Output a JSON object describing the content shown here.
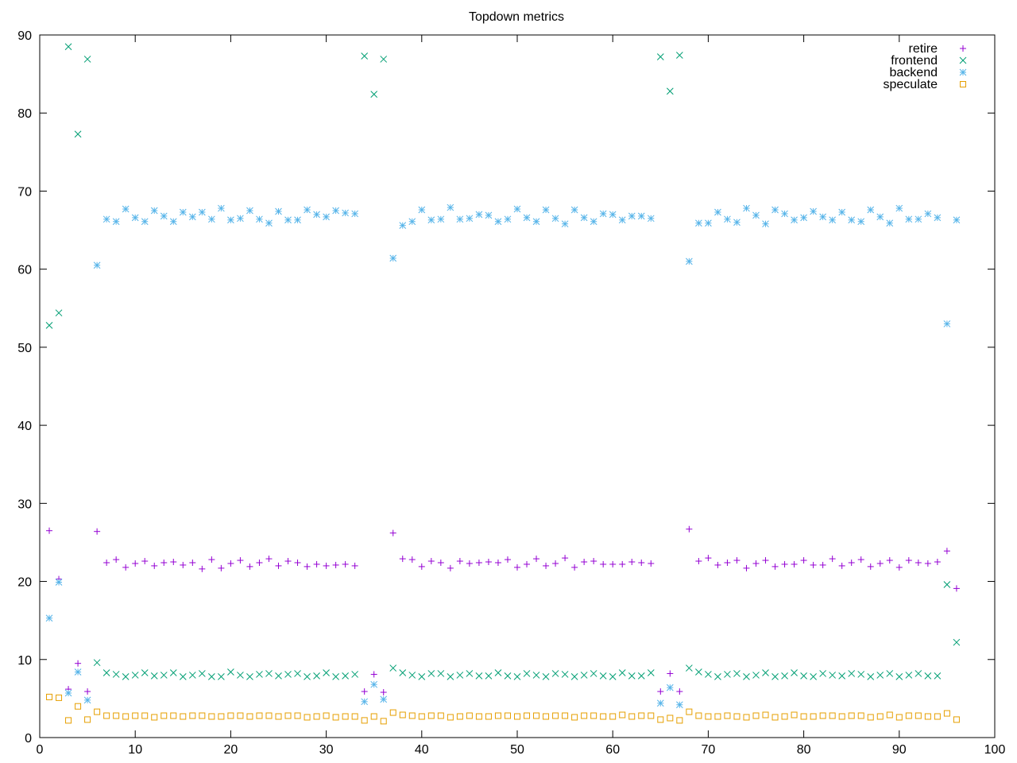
{
  "chart_data": {
    "type": "scatter",
    "title": "Topdown metrics",
    "xlabel": "",
    "ylabel": "",
    "xlim": [
      0,
      100
    ],
    "ylim": [
      0,
      90
    ],
    "xticks": [
      0,
      10,
      20,
      30,
      40,
      50,
      60,
      70,
      80,
      90,
      100
    ],
    "yticks": [
      0,
      10,
      20,
      30,
      40,
      50,
      60,
      70,
      80,
      90
    ],
    "grid": false,
    "legend_position": "top-right",
    "x": [
      1,
      2,
      3,
      4,
      5,
      6,
      7,
      8,
      9,
      10,
      11,
      12,
      13,
      14,
      15,
      16,
      17,
      18,
      19,
      20,
      21,
      22,
      23,
      24,
      25,
      26,
      27,
      28,
      29,
      30,
      31,
      32,
      33,
      34,
      35,
      36,
      37,
      38,
      39,
      40,
      41,
      42,
      43,
      44,
      45,
      46,
      47,
      48,
      49,
      50,
      51,
      52,
      53,
      54,
      55,
      56,
      57,
      58,
      59,
      60,
      61,
      62,
      63,
      64,
      65,
      66,
      67,
      68,
      69,
      70,
      71,
      72,
      73,
      74,
      75,
      76,
      77,
      78,
      79,
      80,
      81,
      82,
      83,
      84,
      85,
      86,
      87,
      88,
      89,
      90,
      91,
      92,
      93,
      94,
      95,
      96
    ],
    "series": [
      {
        "name": "retire",
        "color": "#9400d3",
        "marker": "plus",
        "values": [
          26.5,
          20.3,
          6.2,
          9.5,
          5.9,
          26.4,
          22.4,
          22.8,
          21.8,
          22.3,
          22.6,
          22.0,
          22.4,
          22.5,
          22.1,
          22.4,
          21.6,
          22.8,
          21.7,
          22.3,
          22.7,
          21.9,
          22.4,
          22.9,
          22.0,
          22.6,
          22.4,
          21.9,
          22.2,
          22.0,
          22.1,
          22.2,
          22.0,
          5.9,
          8.1,
          5.8,
          26.2,
          22.9,
          22.8,
          21.9,
          22.6,
          22.4,
          21.7,
          22.6,
          22.3,
          22.4,
          22.5,
          22.4,
          22.8,
          21.8,
          22.2,
          22.9,
          22.0,
          22.3,
          23.0,
          21.8,
          22.5,
          22.6,
          22.2,
          22.2,
          22.2,
          22.5,
          22.4,
          22.3,
          5.9,
          8.2,
          5.9,
          26.7,
          22.6,
          23.0,
          22.1,
          22.4,
          22.7,
          21.7,
          22.3,
          22.7,
          21.9,
          22.2,
          22.2,
          22.7,
          22.1,
          22.1,
          22.9,
          22.0,
          22.4,
          22.8,
          21.9,
          22.3,
          22.7,
          21.8,
          22.7,
          22.4,
          22.3,
          22.5,
          23.9,
          19.1
        ]
      },
      {
        "name": "frontend",
        "color": "#009e73",
        "marker": "cross",
        "values": [
          52.8,
          54.4,
          88.5,
          77.3,
          86.9,
          9.6,
          8.3,
          8.1,
          7.8,
          8.0,
          8.3,
          7.9,
          8.0,
          8.3,
          7.8,
          8.0,
          8.2,
          7.8,
          7.8,
          8.4,
          8.0,
          7.8,
          8.1,
          8.2,
          7.9,
          8.1,
          8.2,
          7.8,
          7.9,
          8.3,
          7.8,
          7.9,
          8.1,
          87.3,
          82.4,
          86.9,
          8.9,
          8.3,
          8.0,
          7.8,
          8.2,
          8.2,
          7.8,
          8.0,
          8.2,
          7.9,
          7.9,
          8.3,
          7.9,
          7.8,
          8.2,
          8.0,
          7.8,
          8.2,
          8.1,
          7.8,
          8.0,
          8.2,
          7.9,
          7.8,
          8.3,
          7.9,
          7.9,
          8.3,
          87.2,
          82.8,
          87.4,
          8.9,
          8.4,
          8.1,
          7.8,
          8.1,
          8.2,
          7.8,
          8.0,
          8.3,
          7.8,
          7.9,
          8.3,
          7.9,
          7.8,
          8.2,
          8.0,
          7.9,
          8.2,
          8.1,
          7.8,
          8.0,
          8.2,
          7.8,
          8.0,
          8.2,
          7.9,
          7.9,
          19.6,
          12.2
        ]
      },
      {
        "name": "backend",
        "color": "#56b4e9",
        "marker": "star",
        "values": [
          15.3,
          19.9,
          5.7,
          8.4,
          4.8,
          60.5,
          66.4,
          66.1,
          67.7,
          66.6,
          66.1,
          67.5,
          66.8,
          66.1,
          67.3,
          66.7,
          67.3,
          66.4,
          67.8,
          66.3,
          66.5,
          67.5,
          66.4,
          65.9,
          67.4,
          66.3,
          66.3,
          67.6,
          67.0,
          66.7,
          67.5,
          67.2,
          67.1,
          4.6,
          6.8,
          4.9,
          61.4,
          65.6,
          66.1,
          67.6,
          66.3,
          66.4,
          67.9,
          66.4,
          66.5,
          67.0,
          66.9,
          66.1,
          66.4,
          67.7,
          66.6,
          66.1,
          67.6,
          66.5,
          65.8,
          67.6,
          66.6,
          66.1,
          67.1,
          67.0,
          66.3,
          66.8,
          66.8,
          66.5,
          4.4,
          6.4,
          4.2,
          61.0,
          65.9,
          65.9,
          67.3,
          66.4,
          66.0,
          67.8,
          66.9,
          65.8,
          67.6,
          67.1,
          66.3,
          66.6,
          67.4,
          66.7,
          66.3,
          67.3,
          66.3,
          66.1,
          67.6,
          66.7,
          65.9,
          67.8,
          66.4,
          66.4,
          67.1,
          66.6,
          53.0,
          66.3
        ]
      },
      {
        "name": "speculate",
        "color": "#e69f00",
        "marker": "square",
        "values": [
          5.2,
          5.1,
          2.2,
          4.0,
          2.3,
          3.3,
          2.8,
          2.8,
          2.7,
          2.8,
          2.8,
          2.6,
          2.8,
          2.8,
          2.7,
          2.8,
          2.8,
          2.7,
          2.7,
          2.8,
          2.8,
          2.7,
          2.8,
          2.8,
          2.7,
          2.8,
          2.8,
          2.6,
          2.7,
          2.8,
          2.6,
          2.7,
          2.7,
          2.2,
          2.7,
          2.1,
          3.2,
          2.9,
          2.8,
          2.7,
          2.8,
          2.8,
          2.6,
          2.7,
          2.8,
          2.7,
          2.7,
          2.8,
          2.8,
          2.7,
          2.8,
          2.8,
          2.7,
          2.8,
          2.8,
          2.6,
          2.8,
          2.8,
          2.7,
          2.7,
          2.9,
          2.7,
          2.8,
          2.8,
          2.3,
          2.5,
          2.2,
          3.3,
          2.8,
          2.7,
          2.7,
          2.8,
          2.7,
          2.6,
          2.8,
          2.9,
          2.6,
          2.7,
          2.9,
          2.7,
          2.7,
          2.8,
          2.8,
          2.7,
          2.8,
          2.8,
          2.6,
          2.7,
          2.9,
          2.6,
          2.8,
          2.8,
          2.7,
          2.7,
          3.1,
          2.3
        ]
      }
    ]
  }
}
